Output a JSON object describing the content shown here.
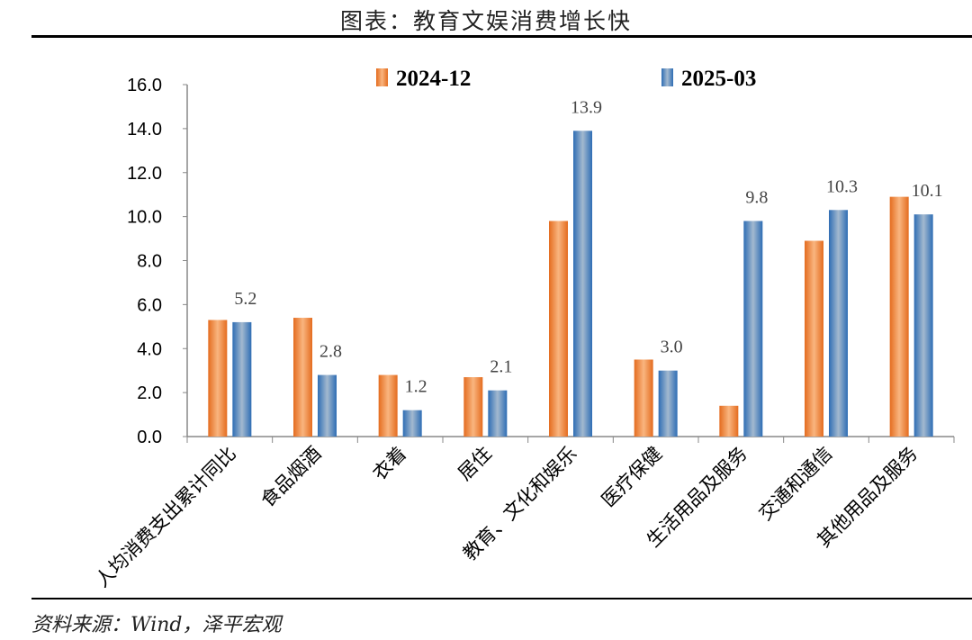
{
  "title": "图表：教育文娱消费增长快",
  "source": "资料来源：Wind，泽平宏观",
  "chart_data": {
    "type": "bar",
    "categories": [
      "人均消费支出累计同比",
      "食品烟酒",
      "衣着",
      "居住",
      "教育、文化和娱乐",
      "医疗保健",
      "生活用品及服务",
      "交通和通信",
      "其他用品及服务"
    ],
    "series": [
      {
        "name": "2024-12",
        "color": "#ED7D31",
        "values": [
          5.3,
          5.4,
          2.8,
          2.7,
          9.8,
          3.5,
          1.4,
          8.9,
          10.9
        ]
      },
      {
        "name": "2025-03",
        "color": "#4F81BD",
        "values": [
          5.2,
          2.8,
          1.2,
          2.1,
          13.9,
          3.0,
          9.8,
          10.3,
          10.1
        ],
        "data_labels": [
          "5.2",
          "2.8",
          "1.2",
          "2.1",
          "13.9",
          "3.0",
          "9.8",
          "10.3",
          "10.1"
        ]
      }
    ],
    "ylim": [
      0,
      16
    ],
    "yticks": [
      "0.0",
      "2.0",
      "4.0",
      "6.0",
      "8.0",
      "10.0",
      "12.0",
      "14.0",
      "16.0"
    ],
    "legend": "top",
    "grid": false
  }
}
